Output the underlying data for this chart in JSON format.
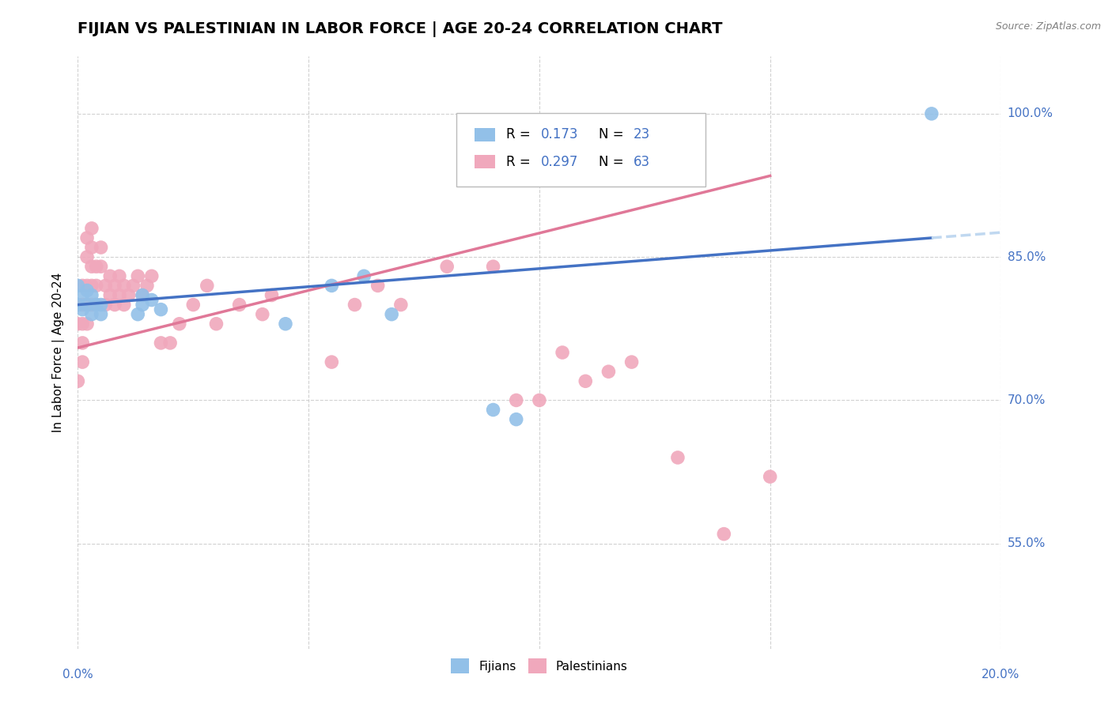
{
  "title": "FIJIAN VS PALESTINIAN IN LABOR FORCE | AGE 20-24 CORRELATION CHART",
  "source": "Source: ZipAtlas.com",
  "ylabel": "In Labor Force | Age 20-24",
  "xlim": [
    0.0,
    0.2
  ],
  "ylim": [
    0.44,
    1.06
  ],
  "xticks": [
    0.0,
    0.05,
    0.1,
    0.15,
    0.2
  ],
  "yticks": [
    0.55,
    0.7,
    0.85,
    1.0
  ],
  "ytick_labels": [
    "55.0%",
    "70.0%",
    "85.0%",
    "100.0%"
  ],
  "fijian_color": "#92c0e8",
  "palestinian_color": "#f0a8bc",
  "fijian_line_color": "#4472c4",
  "palestinian_line_color": "#e07898",
  "fijian_dash_color": "#c0d8f0",
  "fijian_R": 0.173,
  "fijian_N": 23,
  "palestinian_R": 0.297,
  "palestinian_N": 63,
  "fijian_points_x": [
    0.0,
    0.0,
    0.001,
    0.001,
    0.002,
    0.002,
    0.003,
    0.003,
    0.004,
    0.005,
    0.005,
    0.013,
    0.014,
    0.014,
    0.016,
    0.018,
    0.045,
    0.055,
    0.062,
    0.068,
    0.09,
    0.095,
    0.185
  ],
  "fijian_points_y": [
    0.82,
    0.8,
    0.81,
    0.795,
    0.815,
    0.8,
    0.81,
    0.79,
    0.8,
    0.8,
    0.79,
    0.79,
    0.81,
    0.8,
    0.805,
    0.795,
    0.78,
    0.82,
    0.83,
    0.79,
    0.69,
    0.68,
    1.0
  ],
  "palestinian_points_x": [
    0.0,
    0.0,
    0.0,
    0.001,
    0.001,
    0.001,
    0.001,
    0.001,
    0.002,
    0.002,
    0.002,
    0.002,
    0.002,
    0.003,
    0.003,
    0.003,
    0.003,
    0.003,
    0.004,
    0.004,
    0.004,
    0.005,
    0.005,
    0.006,
    0.006,
    0.007,
    0.007,
    0.008,
    0.008,
    0.009,
    0.009,
    0.01,
    0.01,
    0.011,
    0.012,
    0.013,
    0.014,
    0.015,
    0.016,
    0.018,
    0.02,
    0.022,
    0.025,
    0.028,
    0.03,
    0.035,
    0.04,
    0.042,
    0.055,
    0.06,
    0.065,
    0.07,
    0.08,
    0.09,
    0.095,
    0.1,
    0.105,
    0.11,
    0.115,
    0.12,
    0.13,
    0.14,
    0.15
  ],
  "palestinian_points_y": [
    0.8,
    0.78,
    0.72,
    0.82,
    0.8,
    0.78,
    0.76,
    0.74,
    0.87,
    0.85,
    0.82,
    0.8,
    0.78,
    0.88,
    0.86,
    0.84,
    0.82,
    0.8,
    0.84,
    0.82,
    0.8,
    0.86,
    0.84,
    0.82,
    0.8,
    0.83,
    0.81,
    0.82,
    0.8,
    0.83,
    0.81,
    0.82,
    0.8,
    0.81,
    0.82,
    0.83,
    0.81,
    0.82,
    0.83,
    0.76,
    0.76,
    0.78,
    0.8,
    0.82,
    0.78,
    0.8,
    0.79,
    0.81,
    0.74,
    0.8,
    0.82,
    0.8,
    0.84,
    0.84,
    0.7,
    0.7,
    0.75,
    0.72,
    0.73,
    0.74,
    0.64,
    0.56,
    0.62
  ],
  "background_color": "#ffffff",
  "grid_color": "#cccccc",
  "label_color": "#4472c4",
  "title_fontsize": 14,
  "axis_label_fontsize": 11,
  "tick_fontsize": 11
}
